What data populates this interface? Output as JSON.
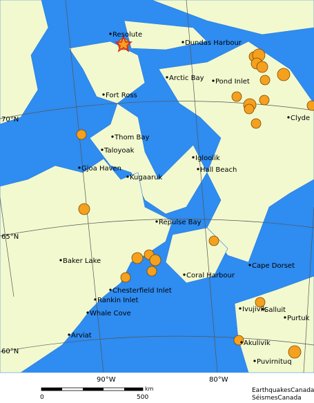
{
  "places": [
    "Resolute",
    "Dundas Harbour",
    "Arctic Bay",
    "Pond Inlet",
    "Fort Ross",
    "Clyde",
    "Thom Bay",
    "Taloyoak",
    "Igloolik",
    "Hall Beach",
    "Gjoa Haven",
    "Kugaaruk",
    "Repulse Bay",
    "Baker Lake",
    "Cape Dorset",
    "Coral Harbour",
    "Chesterfield Inlet",
    "Rankin Inlet",
    "Ivujivik",
    "Salluit",
    "Purtuk",
    "Whale Cove",
    "Akulivik",
    "Arviat",
    "Puvirnituq"
  ],
  "lat_labels": [
    "70°N",
    "65°N",
    "60°N"
  ],
  "lon_labels": [
    "90°W",
    "80°W"
  ],
  "scale": {
    "unit": "km",
    "ticks": [
      "0",
      "500"
    ]
  },
  "credits": [
    "EarthquakesCanada",
    "SéismesCanada"
  ]
}
